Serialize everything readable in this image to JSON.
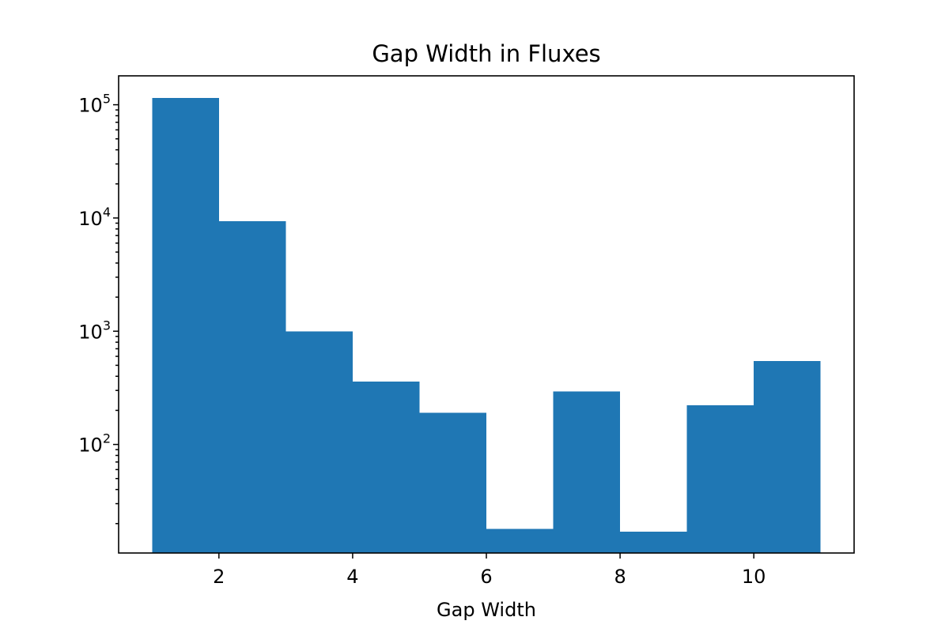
{
  "chart_data": {
    "type": "bar",
    "title": "Gap Width in Fluxes",
    "xlabel": "Gap Width",
    "ylabel": "",
    "x_scale": "linear",
    "y_scale": "log",
    "xlim": [
      0.5,
      11.5
    ],
    "ylim": [
      11,
      180000
    ],
    "bin_edges": [
      1,
      2,
      3,
      4,
      5,
      6,
      7,
      8,
      9,
      10,
      11
    ],
    "values": [
      115000,
      9400,
      1000,
      360,
      190,
      18,
      295,
      17,
      222,
      545
    ],
    "bar_color": "#1f77b4",
    "x_ticks": [
      {
        "value": 2,
        "label": "2"
      },
      {
        "value": 4,
        "label": "4"
      },
      {
        "value": 6,
        "label": "6"
      },
      {
        "value": 8,
        "label": "8"
      },
      {
        "value": 10,
        "label": "10"
      }
    ],
    "y_ticks": [
      {
        "value": 100,
        "base": "10",
        "exp": "2"
      },
      {
        "value": 1000,
        "base": "10",
        "exp": "3"
      },
      {
        "value": 10000,
        "base": "10",
        "exp": "4"
      },
      {
        "value": 100000,
        "base": "10",
        "exp": "5"
      }
    ],
    "grid": false,
    "legend": "none"
  }
}
